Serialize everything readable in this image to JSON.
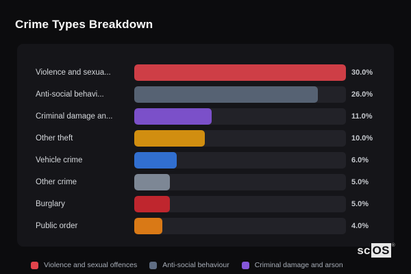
{
  "title": "Crime Types Breakdown",
  "watermark": {
    "prefix": "sc",
    "suffix": "OS",
    "registered": "®"
  },
  "colors": {
    "page_bg": "#0c0c0e",
    "panel_bg": "#151519",
    "track_bg": "#222228",
    "title": "#fafafa",
    "label": "#d4d7db",
    "value": "#c5c8cd",
    "legend_text": "#a8aeb8"
  },
  "chart_data": {
    "type": "bar",
    "orientation": "horizontal",
    "title": "Crime Types Breakdown",
    "xlabel": "",
    "ylabel": "",
    "xlim": [
      0,
      30
    ],
    "unit": "%",
    "grid": false,
    "legend_position": "bottom",
    "categories": [
      "Violence and sexual offences",
      "Anti-social behaviour",
      "Criminal damage and arson",
      "Other theft",
      "Vehicle crime",
      "Other crime",
      "Burglary",
      "Public order"
    ],
    "values": [
      30.0,
      26.0,
      11.0,
      10.0,
      6.0,
      5.0,
      5.0,
      4.0
    ],
    "bars": [
      {
        "label": "Violence and sexua...",
        "full_label": "Violence and sexual offences",
        "value": 30.0,
        "value_label": "30.0%",
        "color": "#ce3e46"
      },
      {
        "label": "Anti-social behavi...",
        "full_label": "Anti-social behaviour",
        "value": 26.0,
        "value_label": "26.0%",
        "color": "#566273"
      },
      {
        "label": "Criminal damage an...",
        "full_label": "Criminal damage and arson",
        "value": 11.0,
        "value_label": "11.0%",
        "color": "#7b50c9"
      },
      {
        "label": "Other theft",
        "full_label": "Other theft",
        "value": 10.0,
        "value_label": "10.0%",
        "color": "#d18e10"
      },
      {
        "label": "Vehicle crime",
        "full_label": "Vehicle crime",
        "value": 6.0,
        "value_label": "6.0%",
        "color": "#316fd0"
      },
      {
        "label": "Other crime",
        "full_label": "Other crime",
        "value": 5.0,
        "value_label": "5.0%",
        "color": "#7d8795"
      },
      {
        "label": "Burglary",
        "full_label": "Burglary",
        "value": 5.0,
        "value_label": "5.0%",
        "color": "#bf262e"
      },
      {
        "label": "Public order",
        "full_label": "Public order",
        "value": 4.0,
        "value_label": "4.0%",
        "color": "#d97916"
      }
    ],
    "legend": [
      {
        "label": "Violence and sexual offences",
        "color": "#e2444c"
      },
      {
        "label": "Anti-social behaviour",
        "color": "#5f6d83"
      },
      {
        "label": "Criminal damage and arson",
        "color": "#8557da"
      }
    ]
  }
}
